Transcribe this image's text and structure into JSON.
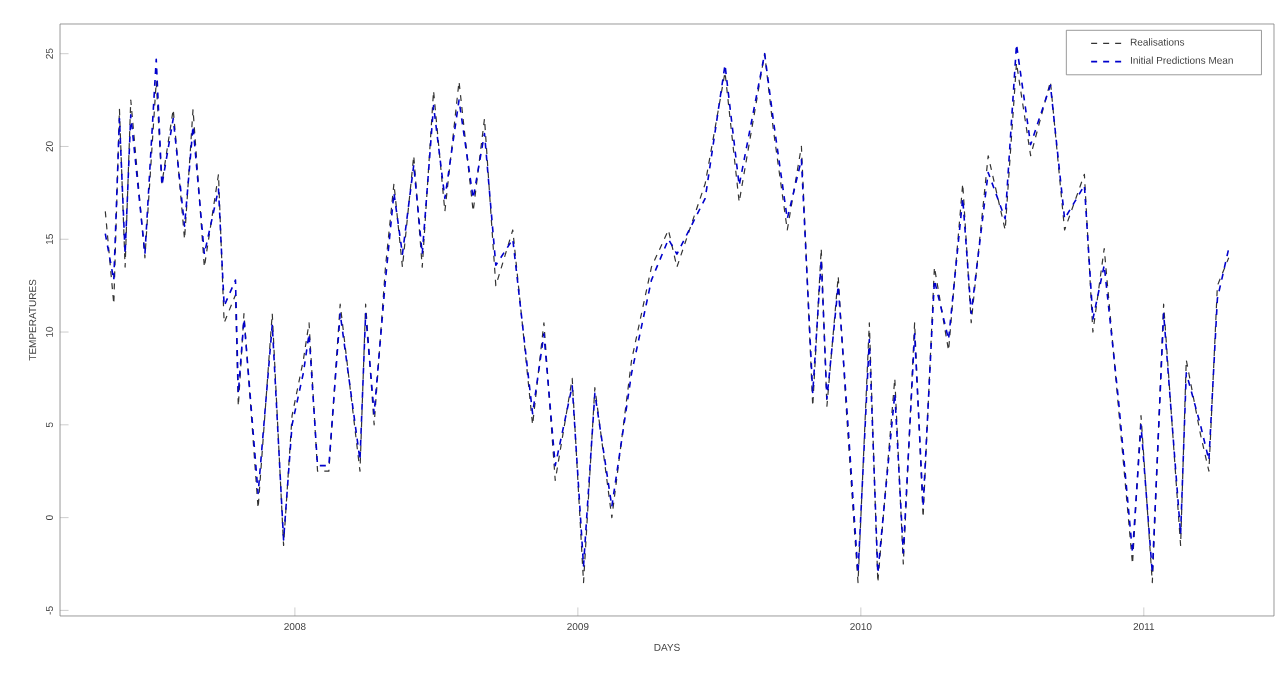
{
  "chart_data": {
    "type": "line",
    "xlabel": "DAYS",
    "ylabel": "TEMPERATURES",
    "xlim": [
      2007.17,
      2011.46
    ],
    "ylim": [
      -5.3,
      26.6
    ],
    "xticks": [
      2008,
      2009,
      2010,
      2011
    ],
    "yticks": [
      -5,
      0,
      5,
      10,
      15,
      20,
      25
    ],
    "legend": "top right",
    "grid": false,
    "marker": "none",
    "x": [
      2007.33,
      2007.36,
      2007.38,
      2007.4,
      2007.42,
      2007.47,
      2007.51,
      2007.53,
      2007.57,
      2007.61,
      2007.64,
      2007.68,
      2007.73,
      2007.75,
      2007.79,
      2007.8,
      2007.82,
      2007.87,
      2007.92,
      2007.96,
      2007.99,
      2008.03,
      2008.05,
      2008.08,
      2008.12,
      2008.16,
      2008.23,
      2008.25,
      2008.28,
      2008.32,
      2008.35,
      2008.38,
      2008.42,
      2008.45,
      2008.49,
      2008.53,
      2008.58,
      2008.63,
      2008.67,
      2008.71,
      2008.77,
      2008.84,
      2008.88,
      2008.92,
      2008.98,
      2009.02,
      2009.06,
      2009.12,
      2009.19,
      2009.26,
      2009.32,
      2009.35,
      2009.45,
      2009.52,
      2009.57,
      2009.66,
      2009.69,
      2009.74,
      2009.79,
      2009.83,
      2009.86,
      2009.88,
      2009.92,
      2009.95,
      2009.99,
      2010.03,
      2010.06,
      2010.12,
      2010.15,
      2010.19,
      2010.22,
      2010.26,
      2010.31,
      2010.36,
      2010.39,
      2010.45,
      2010.51,
      2010.55,
      2010.6,
      2010.67,
      2010.72,
      2010.79,
      2010.82,
      2010.86,
      2010.91,
      2010.96,
      2010.99,
      2011.03,
      2011.07,
      2011.13,
      2011.15,
      2011.2,
      2011.23,
      2011.26,
      2011.3
    ],
    "series": [
      {
        "name": "Realisations",
        "color": "#333333",
        "line_style": "dashed",
        "values": [
          16.5,
          11.5,
          22.0,
          13.5,
          22.5,
          14.0,
          23.5,
          18.0,
          22.0,
          15.0,
          22.0,
          13.5,
          18.5,
          10.5,
          12.0,
          6.0,
          11.0,
          0.5,
          11.0,
          -1.5,
          5.5,
          8.5,
          10.5,
          2.5,
          2.5,
          11.5,
          2.5,
          11.5,
          5.0,
          13.5,
          18.0,
          13.5,
          19.5,
          13.5,
          23.0,
          16.5,
          23.5,
          16.5,
          21.5,
          12.5,
          15.5,
          5.0,
          10.5,
          2.0,
          7.5,
          -3.5,
          7.0,
          0.0,
          8.5,
          13.5,
          15.5,
          13.5,
          18.0,
          24.0,
          17.0,
          25.0,
          21.0,
          15.5,
          20.0,
          6.0,
          14.5,
          6.0,
          13.0,
          5.5,
          -3.5,
          10.5,
          -3.5,
          7.5,
          -2.5,
          10.5,
          0.0,
          13.5,
          9.0,
          18.0,
          10.5,
          19.5,
          15.5,
          24.5,
          19.5,
          23.5,
          15.5,
          18.5,
          10.0,
          14.5,
          6.0,
          -2.5,
          5.5,
          -3.5,
          11.5,
          -1.5,
          8.5,
          4.5,
          2.5,
          12.5,
          14.0
        ]
      },
      {
        "name": "Initial Predictions Mean",
        "color": "#0000cc",
        "line_style": "dashed",
        "values": [
          15.3,
          12.8,
          21.5,
          14.2,
          21.7,
          14.2,
          24.7,
          17.9,
          21.5,
          15.7,
          21.1,
          14.2,
          17.7,
          11.4,
          12.8,
          6.7,
          10.7,
          1.3,
          10.4,
          -1.2,
          5.0,
          7.8,
          9.9,
          2.8,
          2.8,
          11.0,
          3.1,
          11.0,
          5.6,
          12.8,
          17.5,
          14.2,
          19.0,
          14.2,
          22.2,
          17.2,
          22.5,
          17.2,
          20.7,
          13.6,
          15.0,
          5.6,
          9.9,
          2.8,
          7.1,
          -2.6,
          6.7,
          0.6,
          7.8,
          12.8,
          15.0,
          14.2,
          17.2,
          24.4,
          17.9,
          25.0,
          21.5,
          16.1,
          19.3,
          6.7,
          13.9,
          6.4,
          12.5,
          6.0,
          -3.0,
          9.6,
          -3.0,
          6.7,
          -1.9,
          9.9,
          0.6,
          12.8,
          9.6,
          17.2,
          11.0,
          18.6,
          16.1,
          25.5,
          20.1,
          23.3,
          16.1,
          17.9,
          10.7,
          13.6,
          6.4,
          -1.9,
          5.0,
          -3.0,
          11.0,
          -0.9,
          7.8,
          5.0,
          3.1,
          11.8,
          14.5
        ]
      }
    ]
  }
}
